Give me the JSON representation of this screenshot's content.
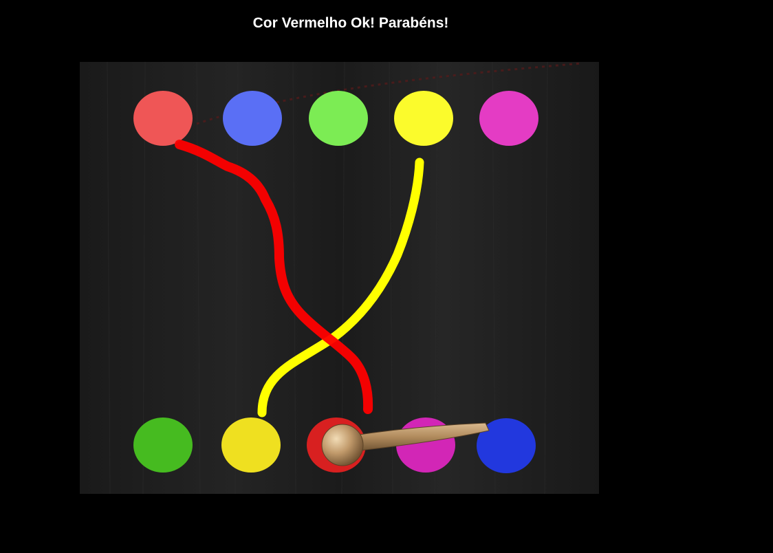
{
  "status": {
    "message": "Cor Vermelho Ok! Parabéns!"
  },
  "colors": {
    "background": "#000000",
    "board": "#1d1d1d",
    "red": "#ff0000",
    "yellow": "#ffff00"
  },
  "top_row": [
    {
      "name": "top-dot-red",
      "color": "#ef5656"
    },
    {
      "name": "top-dot-blue",
      "color": "#5a6ff5"
    },
    {
      "name": "top-dot-green",
      "color": "#7cec54"
    },
    {
      "name": "top-dot-yellow",
      "color": "#fbfb2c"
    },
    {
      "name": "top-dot-magenta",
      "color": "#e43cc4"
    }
  ],
  "bottom_row": [
    {
      "name": "bottom-dot-green",
      "color": "#46bb20"
    },
    {
      "name": "bottom-dot-yellow",
      "color": "#efe020"
    },
    {
      "name": "bottom-dot-red",
      "color": "#d82020"
    },
    {
      "name": "bottom-dot-magenta",
      "color": "#d226b6"
    },
    {
      "name": "bottom-dot-blue",
      "color": "#2238de"
    }
  ],
  "connections": [
    {
      "name": "connection-red",
      "color": "#ff0000",
      "status": "connected"
    },
    {
      "name": "connection-yellow",
      "color": "#ffff00",
      "status": "in-progress"
    }
  ],
  "cursor": {
    "name": "wooden-pointer-icon"
  }
}
